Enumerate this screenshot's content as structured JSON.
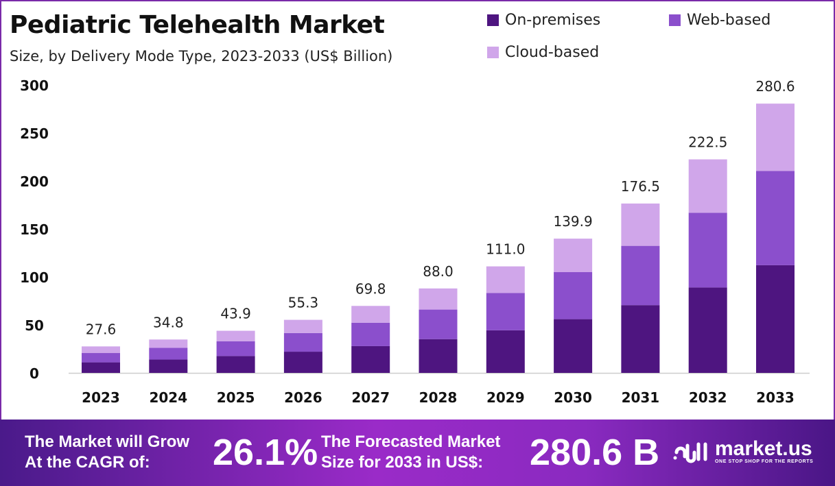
{
  "chart_data": {
    "type": "bar",
    "stacked": true,
    "title": "Pediatric Telehealth Market",
    "subtitle": "Size, by Delivery Mode Type, 2023-2033 (US$ Billion)",
    "categories": [
      "2023",
      "2024",
      "2025",
      "2026",
      "2027",
      "2028",
      "2029",
      "2030",
      "2031",
      "2032",
      "2033"
    ],
    "series": [
      {
        "name": "On-premises",
        "color": "#4e1580",
        "values": [
          11.0,
          13.9,
          17.6,
          22.1,
          27.9,
          35.2,
          44.4,
          56.0,
          70.6,
          89.0,
          112.2
        ]
      },
      {
        "name": "Web-based",
        "color": "#8b4fcc",
        "values": [
          9.7,
          12.2,
          15.4,
          19.4,
          24.4,
          30.8,
          38.9,
          49.0,
          61.8,
          77.9,
          98.2
        ]
      },
      {
        "name": "Cloud-based",
        "color": "#d0a6ea",
        "values": [
          6.9,
          8.7,
          10.9,
          13.8,
          17.5,
          22.0,
          27.7,
          34.9,
          44.1,
          55.6,
          70.2
        ]
      }
    ],
    "totals": [
      "27.6",
      "34.8",
      "43.9",
      "55.3",
      "69.8",
      "88.0",
      "111.0",
      "139.9",
      "176.5",
      "222.5",
      "280.6"
    ],
    "yticks": [
      "0",
      "50",
      "100",
      "150",
      "200",
      "250",
      "300"
    ],
    "ylim": [
      0,
      300
    ],
    "grid": false,
    "legend": "top-right"
  },
  "footer": {
    "cagr_text_1": "The Market will Grow",
    "cagr_text_2": "At the CAGR of:",
    "cagr_value": "26.1%",
    "forecast_text_1": "The Forecasted Market",
    "forecast_text_2": "Size for 2033 in US$:",
    "forecast_value": "280.6 B",
    "logo_name": "market.us",
    "logo_tagline": "ONE STOP SHOP FOR THE REPORTS"
  }
}
